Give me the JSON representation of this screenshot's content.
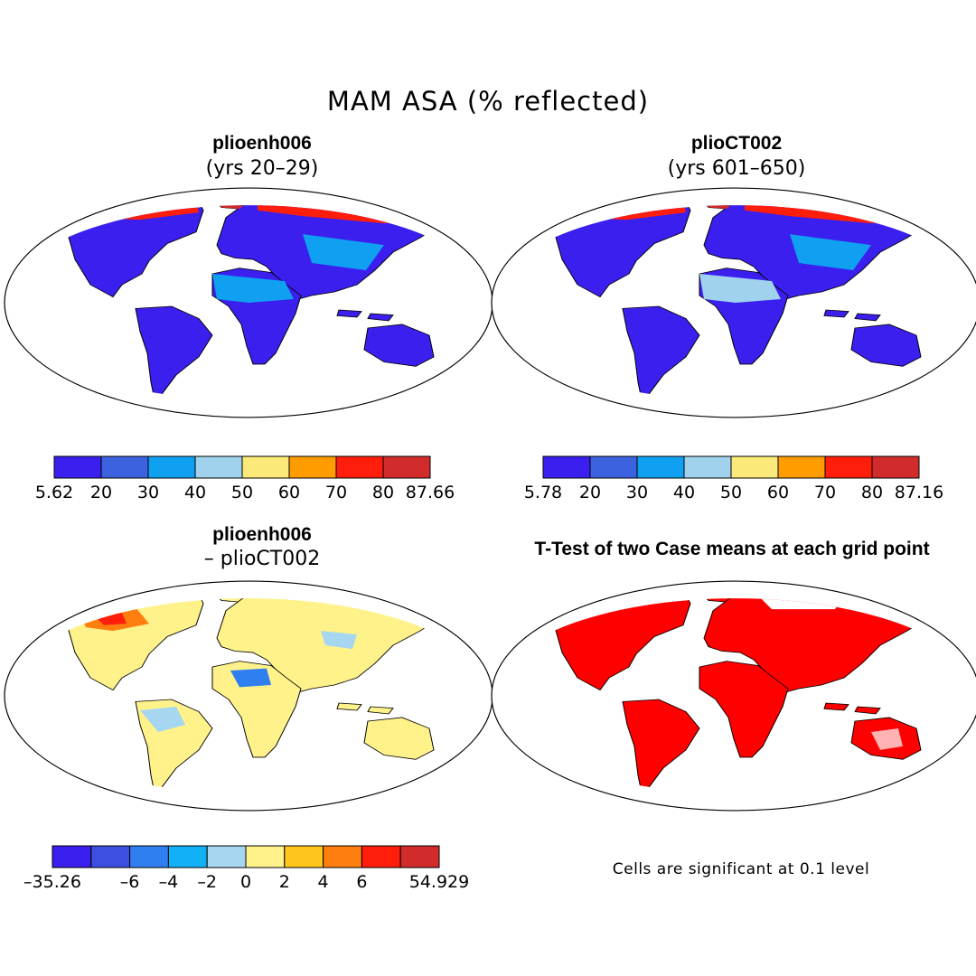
{
  "figure": {
    "title": "MAM ASA (% reflected)",
    "panels": [
      {
        "title": "plioenh006",
        "subtitle": "(yrs 20–29)",
        "colorbar": {
          "colors": [
            "#3a1fee",
            "#3d62e0",
            "#0fa0f2",
            "#a0d2ee",
            "#fbe97a",
            "#ff9c00",
            "#ff1e0b",
            "#d22b2b"
          ],
          "labels": [
            "5.62",
            "20",
            "30",
            "40",
            "50",
            "60",
            "70",
            "80",
            "87.66"
          ]
        }
      },
      {
        "title": "plioCT002",
        "subtitle": "(yrs 601–650)",
        "colorbar": {
          "colors": [
            "#3a1fee",
            "#3d62e0",
            "#0fa0f2",
            "#a0d2ee",
            "#fbe97a",
            "#ff9c00",
            "#ff1e0b",
            "#d22b2b"
          ],
          "labels": [
            "5.78",
            "20",
            "30",
            "40",
            "50",
            "60",
            "70",
            "80",
            "87.16"
          ]
        }
      },
      {
        "title": "plioenh006",
        "subtitle": "– plioCT002",
        "colorbar": {
          "colors": [
            "#3a1fee",
            "#3d4fe0",
            "#2f7ff0",
            "#12b0f6",
            "#a6d6f0",
            "#fff28a",
            "#ffc61e",
            "#ff7e10",
            "#ff1d0b",
            "#d22b2b"
          ],
          "labels": [
            "–35.26",
            "",
            "–6",
            "–4",
            "–2",
            "0",
            "2",
            "4",
            "6",
            "",
            "54.929"
          ]
        }
      },
      {
        "title": "T-Test of two Case means at each grid point",
        "subtitle": "",
        "note": "Cells are significant at 0.1 level"
      }
    ]
  }
}
